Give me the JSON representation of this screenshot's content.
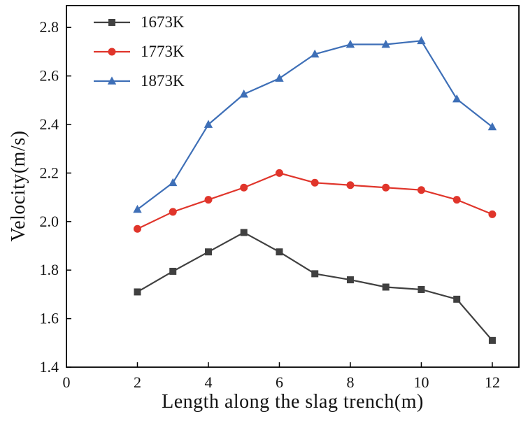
{
  "chart_data": {
    "type": "line",
    "title": "",
    "xlabel": "Length along the slag trench(m)",
    "ylabel": "Velocity(m/s)",
    "xlim": [
      0,
      12.75
    ],
    "ylim": [
      1.4,
      2.89
    ],
    "xticks": [
      0,
      2,
      4,
      6,
      8,
      10,
      12
    ],
    "yticks": [
      1.4,
      1.6,
      1.8,
      2.0,
      2.2,
      2.4,
      2.6,
      2.8
    ],
    "grid": false,
    "legend_position": "top-left",
    "x": [
      2,
      3,
      4,
      5,
      6,
      7,
      8,
      9,
      10,
      11,
      12
    ],
    "series": [
      {
        "name": "1673K",
        "marker": "square",
        "color": "#404040",
        "values": [
          1.71,
          1.795,
          1.875,
          1.955,
          1.875,
          1.785,
          1.76,
          1.73,
          1.72,
          1.68,
          1.51
        ]
      },
      {
        "name": "1773K",
        "marker": "circle",
        "color": "#e0352b",
        "values": [
          1.97,
          2.04,
          2.09,
          2.14,
          2.2,
          2.16,
          2.15,
          2.14,
          2.13,
          2.09,
          2.03
        ]
      },
      {
        "name": "1873K",
        "marker": "triangle",
        "color": "#3e6fb7",
        "values": [
          2.05,
          2.16,
          2.4,
          2.525,
          2.59,
          2.69,
          2.73,
          2.73,
          2.745,
          2.505,
          2.39
        ]
      }
    ]
  }
}
